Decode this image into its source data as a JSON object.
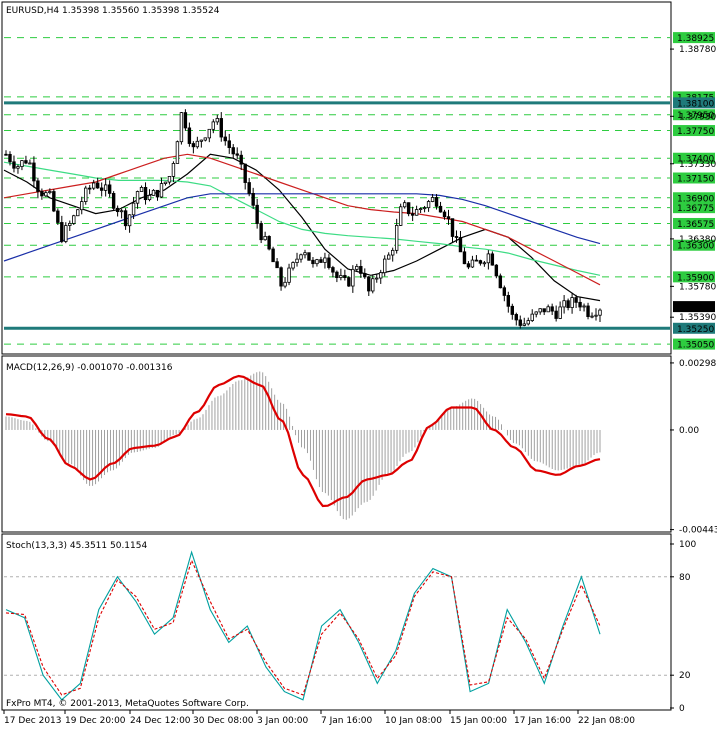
{
  "colors": {
    "background": "#ffffff",
    "border": "#000000",
    "grid_level": "#2ecc40",
    "key_level": "#1f7a7a",
    "candle": "#000000",
    "ma_fast": "#000000",
    "ma_green": "#3ddc84",
    "ma_red": "#cc1f1f",
    "ma_blue": "#1a2fa8",
    "macd_hist": "#a0a0a0",
    "macd_signal": "#dd0000",
    "stoch_main": "#00a0a0",
    "stoch_signal": "#dd0000",
    "tag_green": "#2ecc40",
    "tag_teal": "#1f7a7a",
    "tag_current": "#000000"
  },
  "chart_data": [
    {
      "type": "candlestick",
      "title": "EURUSD,H4  1.35398 1.35560 1.35398 1.35524",
      "symbol": "EURUSD",
      "timeframe": "H4",
      "ohlc_last": {
        "open": "1.35398",
        "high": "1.35560",
        "low": "1.35398",
        "close": "1.35524"
      },
      "ylim": [
        1.3495,
        1.3935
      ],
      "x_tick_labels": [
        "17 Dec 2013",
        "19 Dec 20:00",
        "24 Dec 12:00",
        "30 Dec 08:00",
        "3 Jan 00:00",
        "7 Jan 16:00",
        "10 Jan 08:00",
        "15 Jan 00:00",
        "17 Jan 16:00",
        "22 Jan 08:00"
      ],
      "y_tick_labels": [
        "1.38780",
        "1.37930",
        "1.37330",
        "1.36380",
        "1.35780",
        "1.35390"
      ],
      "horizontal_levels": [
        {
          "label": "1.38925",
          "value": 1.38925,
          "style": "grid"
        },
        {
          "label": "1.38175",
          "value": 1.38175,
          "style": "grid"
        },
        {
          "label": "1.38100",
          "value": 1.381,
          "style": "key"
        },
        {
          "label": "1.37950",
          "value": 1.3795,
          "style": "grid"
        },
        {
          "label": "1.37750",
          "value": 1.3775,
          "style": "grid"
        },
        {
          "label": "1.37400",
          "value": 1.374,
          "style": "grid"
        },
        {
          "label": "1.37150",
          "value": 1.3715,
          "style": "grid"
        },
        {
          "label": "1.36900",
          "value": 1.369,
          "style": "grid"
        },
        {
          "label": "1.36775",
          "value": 1.36775,
          "style": "grid"
        },
        {
          "label": "1.36575",
          "value": 1.36575,
          "style": "grid"
        },
        {
          "label": "1.36300",
          "value": 1.363,
          "style": "grid"
        },
        {
          "label": "1.35900",
          "value": 1.359,
          "style": "grid"
        },
        {
          "label": "1.35250",
          "value": 1.3525,
          "style": "key"
        },
        {
          "label": "1.35050",
          "value": 1.3505,
          "style": "grid"
        }
      ],
      "current_price": {
        "label": "1.35524",
        "value": 1.35524
      },
      "close_path": [
        1.3745,
        1.373,
        1.374,
        1.37,
        1.369,
        1.364,
        1.366,
        1.369,
        1.371,
        1.37,
        1.368,
        1.366,
        1.37,
        1.369,
        1.37,
        1.372,
        1.38,
        1.375,
        1.377,
        1.379,
        1.376,
        1.374,
        1.37,
        1.365,
        1.362,
        1.358,
        1.36,
        1.363,
        1.36,
        1.362,
        1.359,
        1.358,
        1.361,
        1.357,
        1.36,
        1.362,
        1.368,
        1.367,
        1.368,
        1.369,
        1.367,
        1.363,
        1.36,
        1.361,
        1.362,
        1.358,
        1.354,
        1.353,
        1.354,
        1.355,
        1.3545,
        1.3555,
        1.356,
        1.3545,
        1.3552
      ],
      "ma_series": [
        {
          "color_key": "ma_fast",
          "values": [
            1.3725,
            1.371,
            1.369,
            1.368,
            1.367,
            1.3675,
            1.369,
            1.37,
            1.372,
            1.3745,
            1.374,
            1.3725,
            1.37,
            1.3665,
            1.3625,
            1.36,
            1.3592,
            1.3598,
            1.361,
            1.3625,
            1.364,
            1.365,
            1.364,
            1.3615,
            1.3585,
            1.3565,
            1.356
          ]
        },
        {
          "color_key": "ma_green",
          "values": [
            1.3735,
            1.373,
            1.3725,
            1.372,
            1.3715,
            1.3712,
            1.3712,
            1.3712,
            1.371,
            1.3705,
            1.369,
            1.3675,
            1.366,
            1.365,
            1.3645,
            1.3642,
            1.364,
            1.3638,
            1.3635,
            1.3632,
            1.3628,
            1.3625,
            1.362,
            1.3612,
            1.3605,
            1.3598,
            1.3592
          ]
        },
        {
          "color_key": "ma_red",
          "values": [
            1.369,
            1.3695,
            1.37,
            1.3705,
            1.371,
            1.372,
            1.373,
            1.374,
            1.3745,
            1.374,
            1.373,
            1.372,
            1.371,
            1.37,
            1.369,
            1.368,
            1.3675,
            1.3672,
            1.367,
            1.3665,
            1.366,
            1.365,
            1.364,
            1.3625,
            1.361,
            1.3595,
            1.358
          ]
        },
        {
          "color_key": "ma_blue",
          "values": [
            1.361,
            1.362,
            1.363,
            1.364,
            1.365,
            1.366,
            1.367,
            1.368,
            1.369,
            1.3695,
            1.3695,
            1.3695,
            1.3695,
            1.3695,
            1.3695,
            1.3695,
            1.3695,
            1.3695,
            1.3695,
            1.3693,
            1.3688,
            1.368,
            1.367,
            1.366,
            1.365,
            1.364,
            1.3632
          ]
        }
      ]
    },
    {
      "type": "bar",
      "title": "MACD(12,26,9) -0.001070 -0.001316",
      "params": "12,26,9",
      "main_value": "-0.001070",
      "signal_value": "-0.001316",
      "ylim": [
        -0.00445,
        0.0032
      ],
      "y_tick_labels": [
        "0.002981",
        "0.00",
        "-0.004433"
      ],
      "histogram": [
        0.0006,
        0.0004,
        -0.0005,
        -0.0015,
        -0.0025,
        -0.0018,
        -0.001,
        -0.0008,
        -0.0002,
        0.0005,
        0.0015,
        0.0022,
        0.0026,
        0.0012,
        -0.0008,
        -0.0028,
        -0.004,
        -0.0032,
        -0.002,
        -0.001,
        0.0002,
        0.001,
        0.0014,
        0.0006,
        -0.0006,
        -0.0014,
        -0.0018,
        -0.0016,
        -0.001
      ],
      "signal": [
        0.0007,
        0.0006,
        -0.0004,
        -0.0016,
        -0.0022,
        -0.0015,
        -0.0008,
        -0.0007,
        -0.0003,
        0.0008,
        0.002,
        0.0024,
        0.002,
        0.0004,
        -0.002,
        -0.0034,
        -0.003,
        -0.0022,
        -0.002,
        -0.0014,
        0.0002,
        0.001,
        0.001,
        0.0,
        -0.0008,
        -0.0018,
        -0.002,
        -0.0016,
        -0.0013
      ]
    },
    {
      "type": "line",
      "title": "Stoch(13,3,3) 45.3511 50.1154",
      "params": "13,3,3",
      "main_value": "45.3511",
      "signal_value": "50.1154",
      "ylim": [
        0,
        100
      ],
      "y_tick_labels": [
        "100",
        "80",
        "20",
        "0"
      ],
      "levels": [
        80,
        20
      ],
      "main": [
        60,
        55,
        20,
        5,
        15,
        60,
        80,
        65,
        45,
        55,
        95,
        60,
        40,
        50,
        25,
        10,
        5,
        50,
        60,
        40,
        15,
        35,
        70,
        85,
        80,
        10,
        15,
        60,
        40,
        15,
        50,
        80,
        45
      ],
      "signal": [
        58,
        57,
        25,
        8,
        12,
        55,
        78,
        68,
        48,
        52,
        90,
        65,
        42,
        48,
        28,
        12,
        8,
        45,
        58,
        42,
        18,
        32,
        68,
        83,
        80,
        14,
        16,
        55,
        42,
        18,
        48,
        75,
        50
      ]
    }
  ],
  "footer": {
    "copyright": "FxPro MT4, © 2001-2013, MetaQuotes Software Corp."
  }
}
